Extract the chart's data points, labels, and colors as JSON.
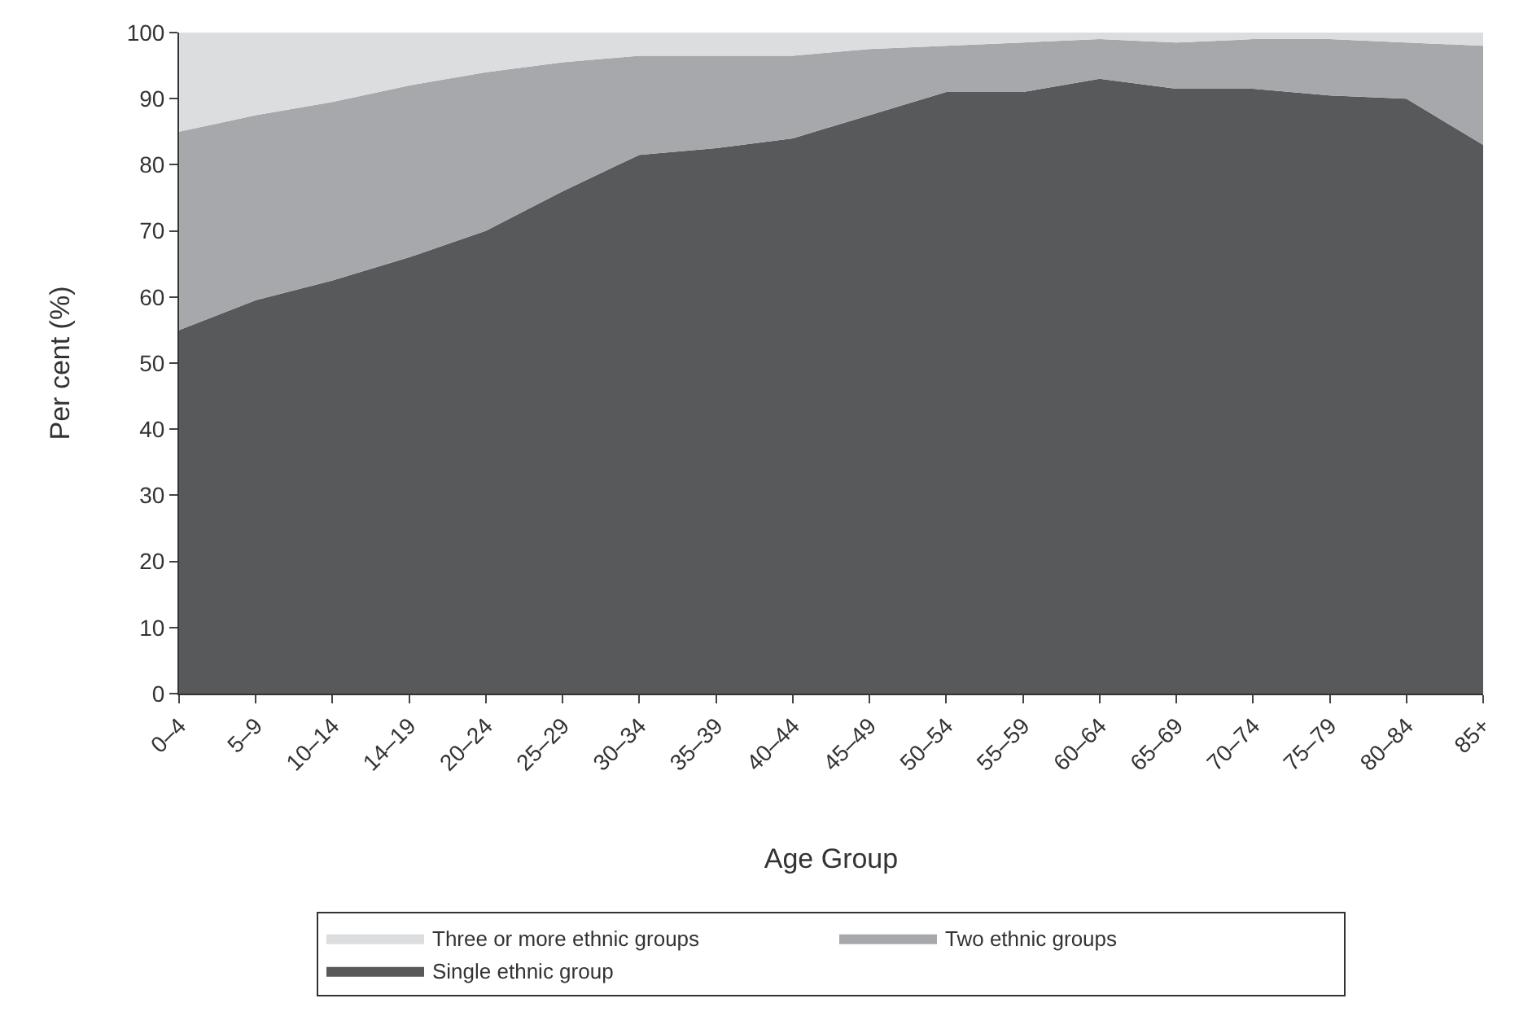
{
  "chart_data": {
    "type": "area",
    "stacked": true,
    "xlabel": "Age Group",
    "ylabel": "Per cent (%)",
    "categories": [
      "0–4",
      "5–9",
      "10–14",
      "14–19",
      "20–24",
      "25–29",
      "30–34",
      "35–39",
      "40–44",
      "45–49",
      "50–54",
      "55–59",
      "60–64",
      "65–69",
      "70–74",
      "75–79",
      "80–84",
      "85+"
    ],
    "series": [
      {
        "name": "Single ethnic group",
        "color": "#58595b",
        "values": [
          55,
          59.5,
          62.5,
          66,
          70,
          76,
          81.5,
          82.5,
          84,
          87.5,
          91,
          91,
          93,
          91.5,
          91.5,
          90.5,
          90,
          83
        ]
      },
      {
        "name": "Two ethnic groups",
        "color": "#a7a8ab",
        "values": [
          30,
          28,
          27,
          26,
          24,
          19.5,
          15,
          14,
          12.5,
          10,
          7,
          7.5,
          6,
          7,
          7.5,
          8.5,
          8.5,
          15
        ]
      },
      {
        "name": "Three or more ethnic groups",
        "color": "#dcdddf",
        "values": [
          15,
          12.5,
          10.5,
          8,
          6,
          4.5,
          3.5,
          3.5,
          3.5,
          2.5,
          2,
          1.5,
          1,
          1.5,
          1,
          1,
          1.5,
          2
        ]
      }
    ],
    "ylim": [
      0,
      100
    ],
    "yticks": [
      0,
      10,
      20,
      30,
      40,
      50,
      60,
      70,
      80,
      90,
      100
    ],
    "legend": "bottom"
  }
}
